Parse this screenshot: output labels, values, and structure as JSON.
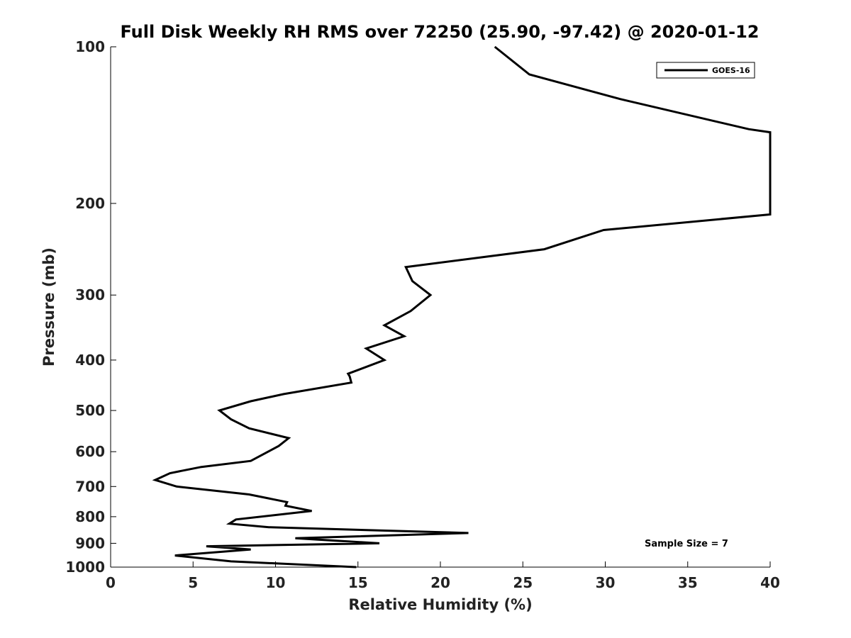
{
  "chart_data": {
    "type": "line",
    "title": "Full Disk Weekly RH RMS over 72250 (25.90, -97.42) @ 2020-01-12",
    "xlabel": "Relative Humidity (%)",
    "ylabel": "Pressure (mb)",
    "xlim": [
      0,
      40
    ],
    "ylim": [
      1000,
      100
    ],
    "yscale": "log",
    "xticks": [
      0,
      5,
      10,
      15,
      20,
      25,
      30,
      35,
      40
    ],
    "yticks": [
      100,
      200,
      300,
      400,
      500,
      600,
      700,
      800,
      900,
      1000
    ],
    "grid": false,
    "legend_position": "top-right",
    "annotation": "Sample Size = 7",
    "series": [
      {
        "name": "GOES-16",
        "color": "#000000",
        "points": [
          [
            14.9,
            1000
          ],
          [
            7.3,
            975
          ],
          [
            3.9,
            950
          ],
          [
            8.5,
            925
          ],
          [
            5.8,
            912
          ],
          [
            16.3,
            900
          ],
          [
            11.2,
            880
          ],
          [
            21.7,
            860
          ],
          [
            9.6,
            838
          ],
          [
            7.2,
            825
          ],
          [
            7.6,
            810
          ],
          [
            12.2,
            780
          ],
          [
            10.6,
            762
          ],
          [
            10.7,
            750
          ],
          [
            8.4,
            725
          ],
          [
            4.0,
            700
          ],
          [
            2.7,
            680
          ],
          [
            3.6,
            660
          ],
          [
            5.5,
            642
          ],
          [
            8.5,
            625
          ],
          [
            10.2,
            585
          ],
          [
            10.8,
            565
          ],
          [
            8.4,
            541
          ],
          [
            7.3,
            520
          ],
          [
            6.6,
            500
          ],
          [
            8.5,
            480
          ],
          [
            10.5,
            465
          ],
          [
            14.6,
            442
          ],
          [
            14.5,
            430
          ],
          [
            14.4,
            425
          ],
          [
            16.6,
            400
          ],
          [
            15.5,
            380
          ],
          [
            17.8,
            360
          ],
          [
            16.6,
            343
          ],
          [
            18.2,
            322
          ],
          [
            19.4,
            300
          ],
          [
            18.3,
            282
          ],
          [
            17.9,
            265
          ],
          [
            26.3,
            245
          ],
          [
            29.9,
            225
          ],
          [
            40.0,
            210
          ],
          [
            40.0,
            146
          ],
          [
            38.7,
            144
          ],
          [
            30.9,
            126
          ],
          [
            25.4,
            113
          ],
          [
            23.3,
            100
          ]
        ]
      }
    ]
  }
}
